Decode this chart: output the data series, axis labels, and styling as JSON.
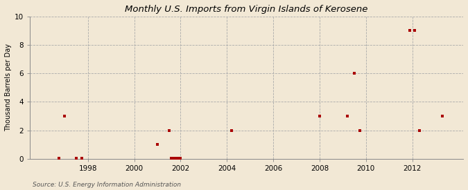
{
  "title": "Monthly U.S. Imports from Virgin Islands of Kerosene",
  "ylabel": "Thousand Barrels per Day",
  "source": "Source: U.S. Energy Information Administration",
  "background_color": "#f2e8d5",
  "marker_color": "#aa0000",
  "xlim": [
    1995.5,
    2014.2
  ],
  "ylim": [
    0,
    10
  ],
  "xticks": [
    1998,
    2000,
    2002,
    2004,
    2006,
    2008,
    2010,
    2012
  ],
  "yticks": [
    0,
    2,
    4,
    6,
    8,
    10
  ],
  "data_points": [
    [
      1996.75,
      0.05
    ],
    [
      1997.0,
      3.0
    ],
    [
      1997.5,
      0.05
    ],
    [
      1997.75,
      0.05
    ],
    [
      2001.0,
      1.0
    ],
    [
      2001.5,
      2.0
    ],
    [
      2001.6,
      0.05
    ],
    [
      2001.7,
      0.05
    ],
    [
      2001.8,
      0.05
    ],
    [
      2001.9,
      0.05
    ],
    [
      2002.0,
      0.05
    ],
    [
      2004.2,
      2.0
    ],
    [
      2008.0,
      3.0
    ],
    [
      2009.2,
      3.0
    ],
    [
      2009.5,
      6.0
    ],
    [
      2009.75,
      2.0
    ],
    [
      2011.9,
      9.0
    ],
    [
      2012.1,
      9.0
    ],
    [
      2012.3,
      2.0
    ],
    [
      2013.3,
      3.0
    ]
  ]
}
